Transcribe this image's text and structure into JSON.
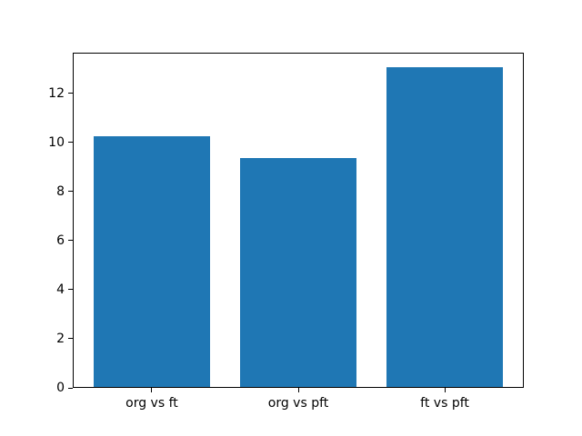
{
  "chart_data": {
    "type": "bar",
    "categories": [
      "org vs ft",
      "org vs pft",
      "ft vs pft"
    ],
    "values": [
      10.27,
      9.35,
      13.05
    ],
    "title": "",
    "xlabel": "",
    "ylabel": "",
    "ylim": [
      0,
      13.66
    ],
    "yticks": [
      0,
      2,
      4,
      6,
      8,
      10,
      12
    ],
    "bar_width_fraction": 0.8,
    "grid": false,
    "legend": "none"
  },
  "colors": {
    "bar": "#1f77b4",
    "spine": "#000000",
    "background": "#ffffff",
    "tick_label": "#000000"
  }
}
